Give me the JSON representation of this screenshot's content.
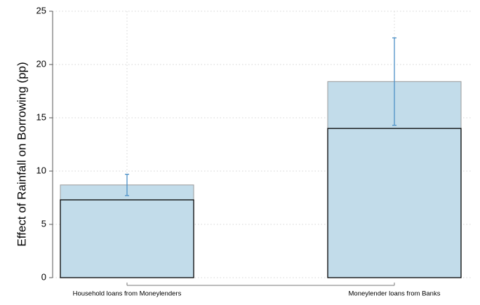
{
  "chart_data": {
    "type": "bar",
    "ylabel": "Effect of Rainfall on Borrowing (pp)",
    "categories": [
      "Household loans from Moneylenders",
      "Moneylender loans from Banks"
    ],
    "series": [
      {
        "values": [
          8.7,
          18.4
        ],
        "color": "#c2dcea",
        "edge": "#9a9a9a"
      },
      {
        "values": [
          7.3,
          14.0
        ],
        "color": "#c2dcea",
        "edge": "#000000"
      }
    ],
    "error_low": [
      7.7,
      14.3
    ],
    "error_high": [
      9.7,
      22.5
    ],
    "error_color": "#4a8fc6",
    "ylim": [
      0,
      25
    ],
    "yticks": [
      0,
      5,
      10,
      15,
      20,
      25
    ],
    "grid": true
  }
}
